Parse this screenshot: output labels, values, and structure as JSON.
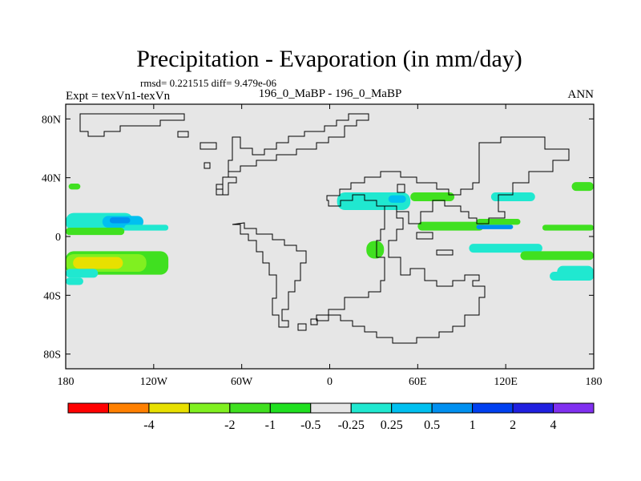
{
  "chart_data": {
    "type": "contour_map",
    "title": "Precipitation - Evaporation (in mm/day)",
    "stats": "rmsd= 0.221515 diff= 9.479e-06",
    "left_label": "Expt = texVn1-texVn",
    "center_label": "196_0_MaBP - 196_0_MaBP",
    "right_label": "ANN",
    "xlim": [
      -180,
      180
    ],
    "ylim": [
      -90,
      90
    ],
    "x_ticks": [
      {
        "lon": -180,
        "label": "180"
      },
      {
        "lon": -120,
        "label": "120W"
      },
      {
        "lon": -60,
        "label": "60W"
      },
      {
        "lon": 0,
        "label": "0"
      },
      {
        "lon": 60,
        "label": "60E"
      },
      {
        "lon": 120,
        "label": "120E"
      },
      {
        "lon": 180,
        "label": "180"
      }
    ],
    "y_ticks": [
      {
        "lat": 80,
        "label": "80N"
      },
      {
        "lat": 40,
        "label": "40N"
      },
      {
        "lat": 0,
        "label": "0"
      },
      {
        "lat": -40,
        "label": "40S"
      },
      {
        "lat": -80,
        "label": "80S"
      }
    ],
    "colorbar": {
      "colors": [
        "#ff0000",
        "#ff8000",
        "#e8e000",
        "#80f020",
        "#40e020",
        "#20e020",
        "#e6e6e6",
        "#20e8d0",
        "#00c0f0",
        "#0090f0",
        "#0040f0",
        "#2020e0",
        "#8030f0"
      ],
      "labels": [
        "-4",
        "-2",
        "-1",
        "-0.5",
        "-0.25",
        "0.25",
        "0.5",
        "1",
        "2",
        "4"
      ]
    },
    "background_color": "#e6e6e6",
    "regions": [
      {
        "color": "#20e8d0",
        "lon": -180,
        "lat": 16,
        "w": 46,
        "h": 12
      },
      {
        "color": "#00c0f0",
        "lon": -155,
        "lat": 14,
        "w": 28,
        "h": 8
      },
      {
        "color": "#0090f0",
        "lon": -150,
        "lat": 13,
        "w": 14,
        "h": 4
      },
      {
        "color": "#40e020",
        "lon": -180,
        "lat": 6,
        "w": 40,
        "h": 5
      },
      {
        "color": "#20e8d0",
        "lon": -140,
        "lat": 8,
        "w": 30,
        "h": 4
      },
      {
        "color": "#40e020",
        "lon": -180,
        "lat": -10,
        "w": 70,
        "h": 16
      },
      {
        "color": "#80f020",
        "lon": -180,
        "lat": -12,
        "w": 55,
        "h": 12
      },
      {
        "color": "#e8e000",
        "lon": -175,
        "lat": -14,
        "w": 34,
        "h": 8
      },
      {
        "color": "#20e8d0",
        "lon": -180,
        "lat": -22,
        "w": 22,
        "h": 6
      },
      {
        "color": "#40e020",
        "lon": -178,
        "lat": 36,
        "w": 8,
        "h": 4
      },
      {
        "color": "#20e8d0",
        "lon": -180,
        "lat": -28,
        "w": 12,
        "h": 5
      },
      {
        "color": "#20e8d0",
        "lon": 5,
        "lat": 30,
        "w": 50,
        "h": 12
      },
      {
        "color": "#00c0f0",
        "lon": 40,
        "lat": 28,
        "w": 12,
        "h": 5
      },
      {
        "color": "#40e020",
        "lon": 55,
        "lat": 30,
        "w": 30,
        "h": 6
      },
      {
        "color": "#40e020",
        "lon": 60,
        "lat": 10,
        "w": 45,
        "h": 6
      },
      {
        "color": "#0090f0",
        "lon": 100,
        "lat": 8,
        "w": 25,
        "h": 3
      },
      {
        "color": "#20e8d0",
        "lon": 110,
        "lat": 30,
        "w": 30,
        "h": 6
      },
      {
        "color": "#40e020",
        "lon": 145,
        "lat": 8,
        "w": 35,
        "h": 4
      },
      {
        "color": "#40e020",
        "lon": 100,
        "lat": 12,
        "w": 30,
        "h": 4
      },
      {
        "color": "#20e8d0",
        "lon": 95,
        "lat": -5,
        "w": 50,
        "h": 6
      },
      {
        "color": "#40e020",
        "lon": 130,
        "lat": -10,
        "w": 50,
        "h": 6
      },
      {
        "color": "#20e8d0",
        "lon": 155,
        "lat": -20,
        "w": 25,
        "h": 8
      },
      {
        "color": "#40e020",
        "lon": 25,
        "lat": -3,
        "w": 12,
        "h": 12
      },
      {
        "color": "#40e020",
        "lon": 165,
        "lat": 37,
        "w": 15,
        "h": 6
      },
      {
        "color": "#20e8d0",
        "lon": 150,
        "lat": -24,
        "w": 30,
        "h": 6
      }
    ]
  }
}
